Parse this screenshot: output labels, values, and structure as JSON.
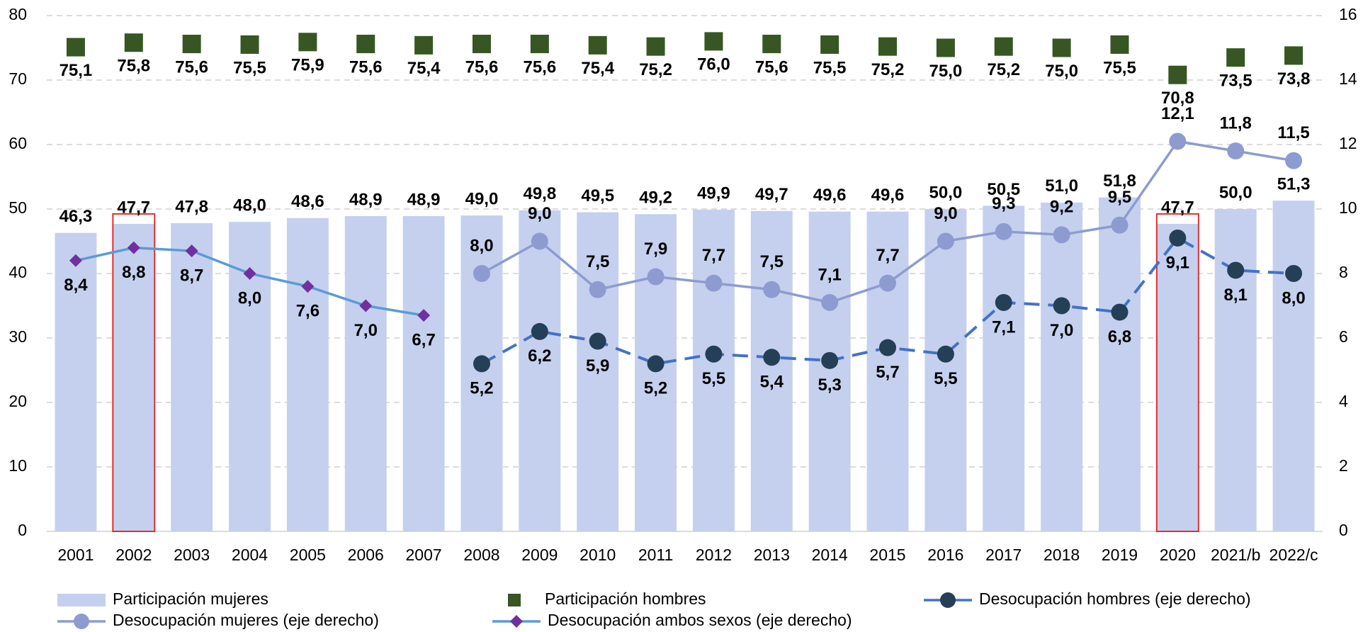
{
  "chart_data": {
    "type": "combo",
    "categories": [
      "2001",
      "2002",
      "2003",
      "2004",
      "2005",
      "2006",
      "2007",
      "2008",
      "2009",
      "2010",
      "2011",
      "2012",
      "2013",
      "2014",
      "2015",
      "2016",
      "2017",
      "2018",
      "2019",
      "2020",
      "2021/b",
      "2022/c"
    ],
    "ylim": [
      0,
      80
    ],
    "yticks": [
      0,
      10,
      20,
      30,
      40,
      50,
      60,
      70,
      80
    ],
    "y2lim": [
      0,
      16
    ],
    "y2ticks": [
      0,
      2,
      4,
      6,
      8,
      10,
      12,
      14,
      16
    ],
    "grid": true,
    "legend": "bottom",
    "highlighted_categories": [
      1,
      19
    ],
    "highlight_color": "#e03030",
    "series": [
      {
        "name": "Participación mujeres",
        "kind": "bar",
        "color": "#c5d0ef",
        "label_color": "#3b1e54",
        "values": [
          46.3,
          47.7,
          47.8,
          48.0,
          48.6,
          48.9,
          48.9,
          49.0,
          49.8,
          49.5,
          49.2,
          49.9,
          49.7,
          49.6,
          49.6,
          50.0,
          50.5,
          51.0,
          51.8,
          47.7,
          50.0,
          51.3
        ],
        "value_labels": [
          "46,3",
          "47,7",
          "47,8",
          "48,0",
          "48,6",
          "48,9",
          "48,9",
          "49,0",
          "49,8",
          "49,5",
          "49,2",
          "49,9",
          "49,7",
          "49,6",
          "49,6",
          "50,0",
          "50,5",
          "51,0",
          "51,8",
          "47,7",
          "50,0",
          "51,3"
        ]
      },
      {
        "name": "Participación hombres",
        "kind": "square",
        "color": "#375623",
        "label_color": "#3d6b1f",
        "values": [
          75.1,
          75.8,
          75.6,
          75.5,
          75.9,
          75.6,
          75.4,
          75.6,
          75.6,
          75.4,
          75.2,
          76.0,
          75.6,
          75.5,
          75.2,
          75.0,
          75.2,
          75.0,
          75.5,
          70.8,
          73.5,
          73.8
        ],
        "value_labels": [
          "75,1",
          "75,8",
          "75,6",
          "75,5",
          "75,9",
          "75,6",
          "75,4",
          "75,6",
          "75,6",
          "75,4",
          "75,2",
          "76,0",
          "75,6",
          "75,5",
          "75,2",
          "75,0",
          "75,2",
          "75,0",
          "75,5",
          "70,8",
          "73,5",
          "73,8"
        ]
      },
      {
        "name": "Desocupación hombres (eje derecho)",
        "kind": "line",
        "axis": "y2",
        "dashed": true,
        "color": "#4472c4",
        "marker": "circle",
        "marker_color": "#243f56",
        "label_color": "#3d6b1f",
        "label_pos": "below",
        "values": [
          null,
          null,
          null,
          null,
          null,
          null,
          null,
          5.2,
          6.2,
          5.9,
          5.2,
          5.5,
          5.4,
          5.3,
          5.7,
          5.5,
          7.1,
          7.0,
          6.8,
          9.1,
          8.1,
          8.0
        ],
        "value_labels": [
          null,
          null,
          null,
          null,
          null,
          null,
          null,
          "5,2",
          "6,2",
          "5,9",
          "5,2",
          "5,5",
          "5,4",
          "5,3",
          "5,7",
          "5,5",
          "7,1",
          "7,0",
          "6,8",
          "9,1",
          "8,1",
          "8,0"
        ]
      },
      {
        "name": "Desocupación mujeres (eje derecho)",
        "kind": "line",
        "axis": "y2",
        "color": "#8e9bd0",
        "marker": "circle",
        "marker_color": "#8e9bd0",
        "label_color": "#7030a0",
        "label_pos": "above",
        "values": [
          null,
          null,
          null,
          null,
          null,
          null,
          null,
          8.0,
          9.0,
          7.5,
          7.9,
          7.7,
          7.5,
          7.1,
          7.7,
          9.0,
          9.3,
          9.2,
          9.5,
          12.1,
          11.8,
          11.5
        ],
        "value_labels": [
          null,
          null,
          null,
          null,
          null,
          null,
          null,
          "8,0",
          "9,0",
          "7,5",
          "7,9",
          "7,7",
          "7,5",
          "7,1",
          "7,7",
          "9,0",
          "9,3",
          "9,2",
          "9,5",
          "12,1",
          "11,8",
          "11,5"
        ]
      },
      {
        "name": "Desocupación ambos sexos (eje derecho)",
        "kind": "line",
        "axis": "y2",
        "color": "#5b9bd5",
        "marker": "diamond",
        "marker_color": "#7030a0",
        "label_color": "#000000",
        "label_pos": "below",
        "values": [
          8.4,
          8.8,
          8.7,
          8.0,
          7.6,
          7.0,
          6.7,
          null,
          null,
          null,
          null,
          null,
          null,
          null,
          null,
          null,
          null,
          null,
          null,
          null,
          null,
          null
        ],
        "value_labels": [
          "8,4",
          "8,8",
          "8,7",
          "8,0",
          "7,6",
          "7,0",
          "6,7",
          null,
          null,
          null,
          null,
          null,
          null,
          null,
          null,
          null,
          null,
          null,
          null,
          null,
          null,
          null
        ]
      }
    ]
  }
}
